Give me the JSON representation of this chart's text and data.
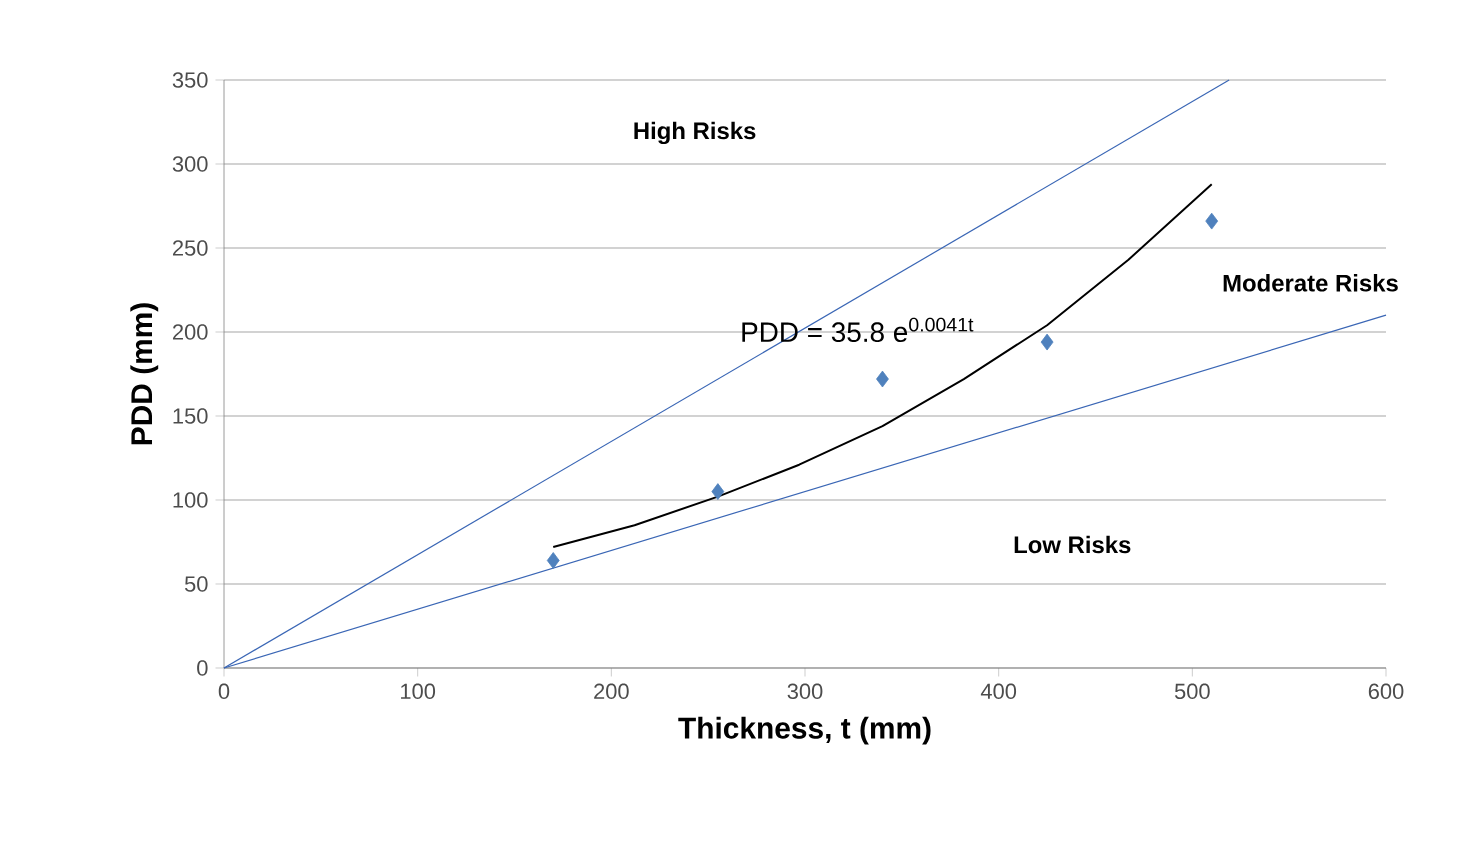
{
  "chart_data": {
    "type": "scatter",
    "xlabel": "Thickness, t (mm)",
    "ylabel": "PDD (mm)",
    "xlim": [
      0,
      600
    ],
    "ylim": [
      0,
      350
    ],
    "xticks": [
      0,
      100,
      200,
      300,
      400,
      500,
      600
    ],
    "yticks": [
      0,
      50,
      100,
      150,
      200,
      250,
      300,
      350
    ],
    "grid": "y",
    "series": [
      {
        "marker": "diamond",
        "color": "#4f81bd",
        "x": [
          170,
          255,
          340,
          425,
          510
        ],
        "values": [
          64,
          105,
          172,
          194,
          266
        ]
      },
      {
        "type": "line",
        "marker": "none",
        "color": "#000000",
        "x": [
          170,
          212,
          255,
          297,
          340,
          382,
          425,
          467,
          510
        ],
        "values": [
          72,
          85,
          102,
          121,
          144,
          172,
          204,
          243,
          288
        ]
      },
      {
        "type": "line",
        "marker": "none",
        "color": "#3a66b5",
        "x": [
          0,
          519
        ],
        "values": [
          0,
          350
        ]
      },
      {
        "type": "line",
        "marker": "none",
        "color": "#3a66b5",
        "x": [
          0,
          600
        ],
        "values": [
          0,
          210
        ]
      }
    ],
    "annotations": [
      "High Risks",
      "Moderate Risks",
      "Low Risks",
      "PDD = 35.8 e$^{0.0041t}$"
    ]
  }
}
